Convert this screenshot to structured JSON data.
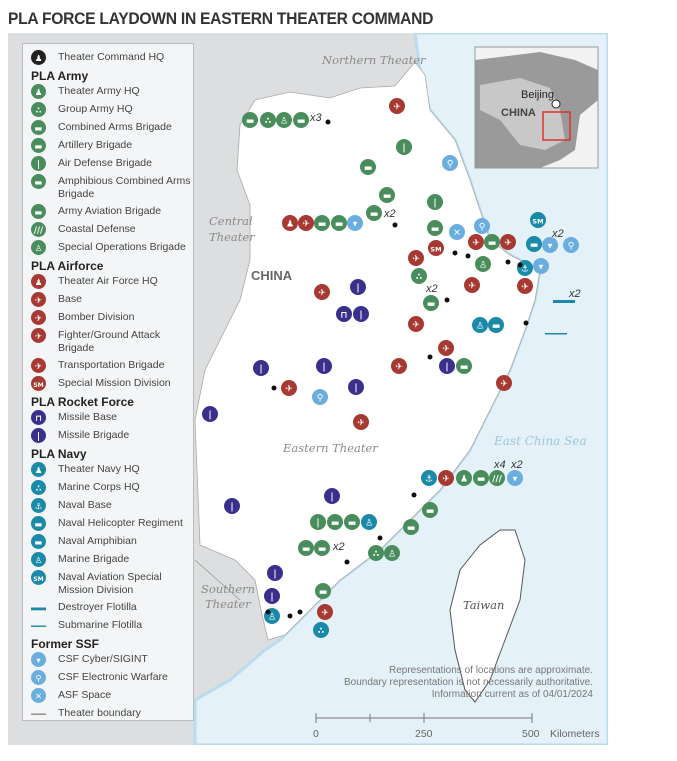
{
  "title": "PLA FORCE LAYDOWN IN EASTERN THEATER COMMAND",
  "colors": {
    "army": "#4a8d5c",
    "airforce": "#a63a32",
    "rocket": "#3b2f8c",
    "navy": "#1a8aa8",
    "ssf": "#6aaee0",
    "hq": "#222222",
    "land_other": "#dcdee0",
    "theater": "#ffffff",
    "sea": "#e4f1f8"
  },
  "map_labels": {
    "northern": "Northern Theater",
    "central_1": "Central",
    "central_2": "Theater",
    "china": "CHINA",
    "eastern": "Eastern Theater",
    "southern_1": "Southern",
    "southern_2": "Theater",
    "east_china_sea": "East China Sea",
    "taiwan": "Taiwan"
  },
  "multipliers": {
    "northwest_group": "x3",
    "central_cab": "x2",
    "ningbo_ssf": "x2",
    "destroyer": "x2",
    "cab_mid": "x2",
    "coastal_defense": "x4",
    "cyber_south": "x2",
    "amphib_south": "x2"
  },
  "inset": {
    "capital": "Beijing",
    "country": "CHINA"
  },
  "legend": {
    "top": {
      "icon": "theater-command-hq",
      "color": "hq",
      "label": "Theater Command HQ"
    },
    "sections": [
      {
        "title": "PLA Army",
        "color": "army",
        "items": [
          {
            "icon": "theater-hq",
            "label": "Theater Army HQ"
          },
          {
            "icon": "group-hq",
            "label": "Group Army HQ"
          },
          {
            "icon": "tank",
            "label": "Combined Arms Brigade"
          },
          {
            "icon": "artillery",
            "label": "Artillery Brigade"
          },
          {
            "icon": "missile",
            "label": "Air Defense Brigade"
          },
          {
            "icon": "amphibious",
            "label": "Amphibious Combined Arms Brigade"
          },
          {
            "icon": "helicopter",
            "label": "Army Aviation Brigade"
          },
          {
            "icon": "coastal",
            "label": "Coastal Defense"
          },
          {
            "icon": "soldier",
            "label": "Special Operations Brigade"
          }
        ]
      },
      {
        "title": "PLA Airforce",
        "color": "airforce",
        "items": [
          {
            "icon": "theater-hq",
            "label": "Theater Air Force HQ"
          },
          {
            "icon": "plane",
            "label": "Base"
          },
          {
            "icon": "bomber",
            "label": "Bomber Division"
          },
          {
            "icon": "fighter",
            "label": "Fighter/Ground Attack Brigade"
          },
          {
            "icon": "transport",
            "label": "Transportation Brigade"
          },
          {
            "icon": "sm",
            "label": "Special Mission Division"
          }
        ]
      },
      {
        "title": "PLA Rocket Force",
        "color": "rocket",
        "items": [
          {
            "icon": "missile-base",
            "label": "Missile Base"
          },
          {
            "icon": "missile-bar",
            "label": "Missile Brigade"
          }
        ]
      },
      {
        "title": "PLA Navy",
        "color": "navy",
        "items": [
          {
            "icon": "theater-hq",
            "label": "Theater Navy HQ"
          },
          {
            "icon": "group-hq",
            "label": "Marine Corps HQ"
          },
          {
            "icon": "anchor",
            "label": "Naval Base"
          },
          {
            "icon": "helicopter",
            "label": "Naval Helicopter Regiment"
          },
          {
            "icon": "amphibious",
            "label": "Naval Amphibian"
          },
          {
            "icon": "soldier",
            "label": "Marine Brigade"
          },
          {
            "icon": "sm",
            "label": "Naval Aviation Special Mission Division"
          },
          {
            "icon": "destroyer",
            "label": "Destroyer Flotilla"
          },
          {
            "icon": "submarine",
            "label": "Submarine Flotilla"
          }
        ]
      },
      {
        "title": "Former SSF",
        "color": "ssf",
        "items": [
          {
            "icon": "cyber",
            "label": "CSF Cyber/SIGINT"
          },
          {
            "icon": "ew",
            "label": "CSF Electronic Warfare"
          },
          {
            "icon": "satellite",
            "label": "ASF Space"
          },
          {
            "icon": "boundary-line",
            "label": "Theater boundary"
          }
        ]
      }
    ]
  },
  "notes": [
    "Representations of locations are approximate.",
    "Boundary representation is not necessarily authoritative.",
    "Information current as of 04/01/2024"
  ],
  "scale": {
    "ticks": [
      "0",
      "250",
      "500"
    ],
    "unit": "Kilometers"
  }
}
